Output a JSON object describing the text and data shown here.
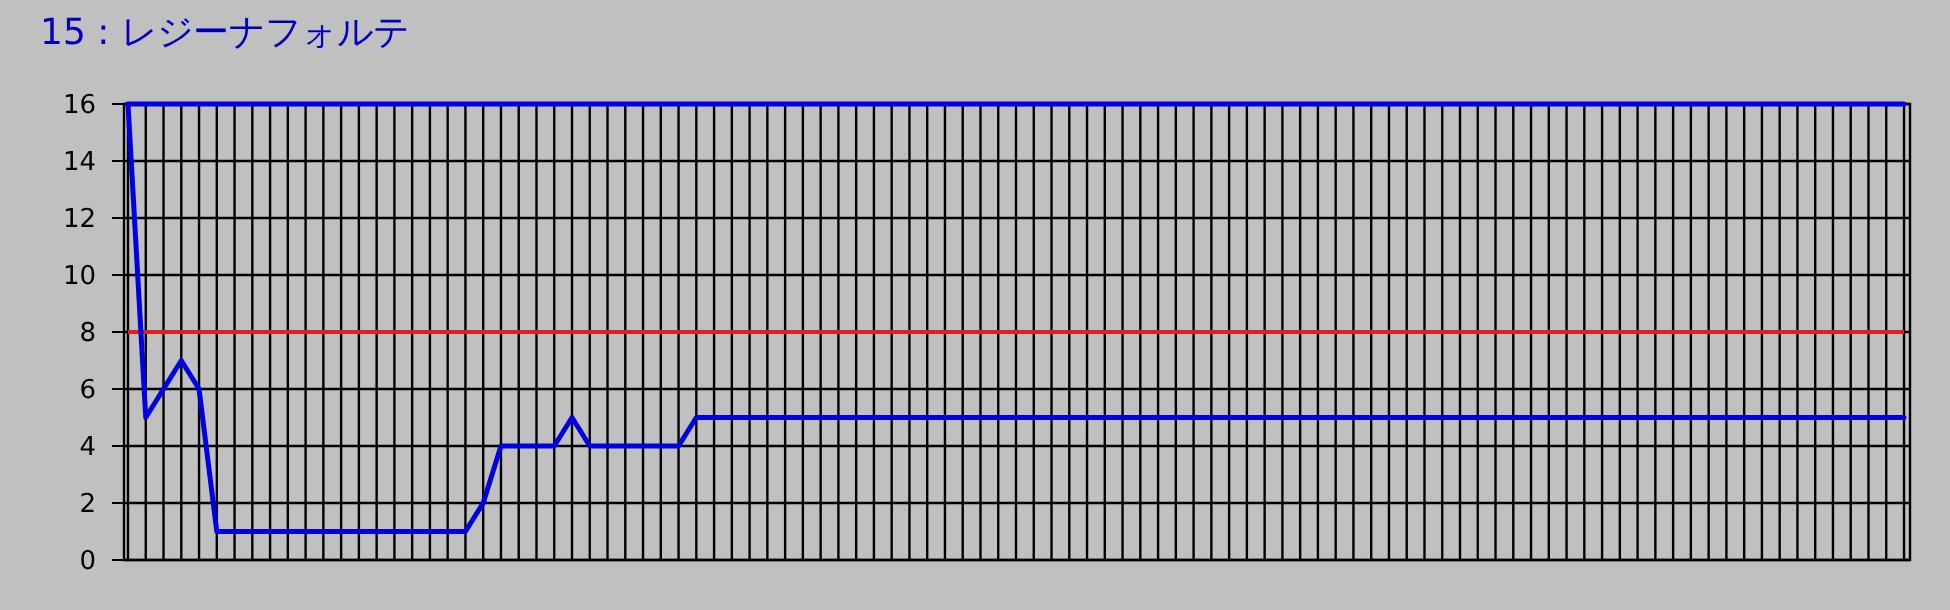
{
  "chart_data": {
    "type": "line",
    "title": "15 : レジーナフォルテ",
    "categories": [
      null,
      null,
      null,
      null,
      null,
      null,
      null,
      null,
      null,
      null,
      null,
      null,
      null,
      null,
      null,
      null,
      null,
      null,
      null,
      null,
      null,
      null,
      null,
      null,
      null,
      null,
      null,
      null,
      null,
      null,
      null,
      null,
      null,
      null,
      null,
      null,
      null,
      null,
      null,
      null,
      null,
      null,
      null,
      null,
      null,
      null,
      null,
      null,
      null,
      null,
      null,
      null,
      null,
      null,
      null,
      null,
      null,
      null,
      null,
      null,
      null,
      null,
      null,
      null,
      null,
      null,
      null,
      null,
      null,
      null,
      null,
      null,
      null,
      null,
      null,
      null,
      null,
      null,
      null,
      null,
      null,
      null,
      null,
      null,
      null,
      null,
      null,
      null,
      null,
      null,
      null,
      null,
      null,
      null,
      null,
      null,
      null,
      null,
      null,
      null,
      null
    ],
    "series": [
      {
        "color": "#0000e0",
        "values": [
          16,
          16,
          16,
          16,
          16,
          16,
          16,
          16,
          16,
          16,
          16,
          16,
          16,
          16,
          16,
          16,
          16,
          16,
          16,
          16,
          16,
          16,
          16,
          16,
          16,
          16,
          16,
          16,
          16,
          16,
          16,
          16,
          16,
          16,
          16,
          16,
          16,
          16,
          16,
          16,
          16,
          16,
          16,
          16,
          16,
          16,
          16,
          16,
          16,
          16,
          16,
          16,
          16,
          16,
          16,
          16,
          16,
          16,
          16,
          16,
          16,
          16,
          16,
          16,
          16,
          16,
          16,
          16,
          16,
          16,
          16,
          16,
          16,
          16,
          16,
          16,
          16,
          16,
          16,
          16,
          16,
          16,
          16,
          16,
          16,
          16,
          16,
          16,
          16,
          16,
          16,
          16,
          16,
          16,
          16,
          16,
          16,
          16,
          16,
          16,
          16
        ]
      },
      {
        "color": "#0000e0",
        "values": [
          16,
          5,
          6,
          7,
          6,
          1,
          1,
          1,
          1,
          1,
          1,
          1,
          1,
          1,
          1,
          1,
          1,
          1,
          1,
          1,
          2,
          4,
          4,
          4,
          4,
          5,
          4,
          4,
          4,
          4,
          4,
          4,
          5,
          5,
          5,
          5,
          5,
          5,
          5,
          5,
          5,
          5,
          5,
          5,
          5,
          5,
          5,
          5,
          5,
          5,
          5,
          5,
          5,
          5,
          5,
          5,
          5,
          5,
          5,
          5,
          5,
          5,
          5,
          5,
          5,
          5,
          5,
          5,
          5,
          5,
          5,
          5,
          5,
          5,
          5,
          5,
          5,
          5,
          5,
          5,
          5,
          5,
          5,
          5,
          5,
          5,
          5,
          5,
          5,
          5,
          5,
          5,
          5,
          5,
          5,
          5,
          5,
          5,
          5,
          5,
          5
        ]
      }
    ],
    "ref_lines": [
      {
        "axis": "y",
        "value": 8,
        "color": "#e02020"
      }
    ],
    "ylim": [
      0,
      16
    ],
    "yticks": [
      0,
      2,
      4,
      6,
      8,
      10,
      12,
      14,
      16
    ],
    "grid": true
  }
}
